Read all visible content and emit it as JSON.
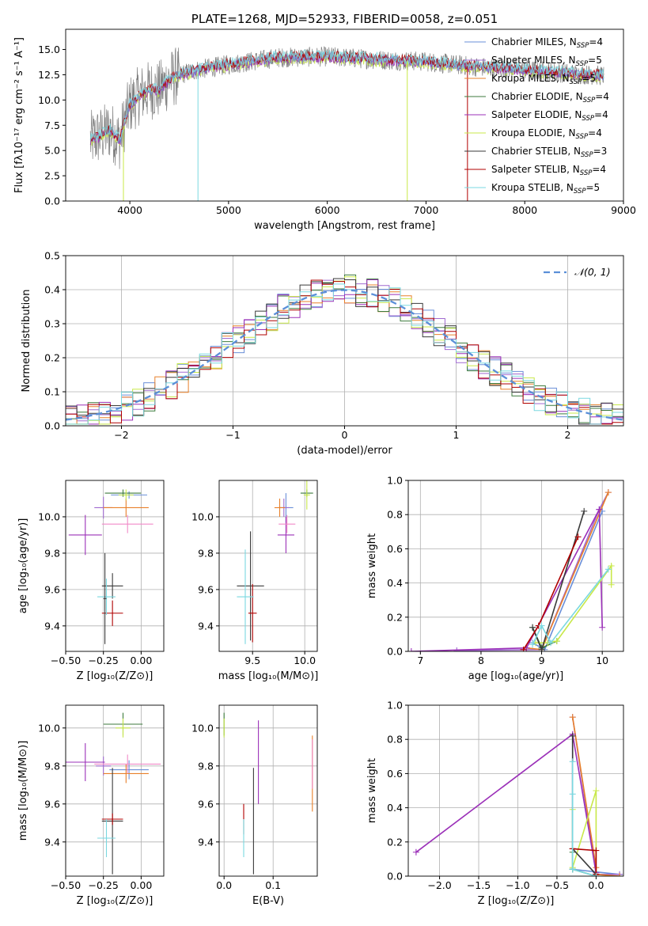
{
  "colors": {
    "Chabrier MILES": "#6a8fd8",
    "Salpeter MILES": "#a06ad0",
    "Kroupa MILES": "#e8802a",
    "Chabrier ELODIE": "#3c7a3c",
    "Salpeter ELODIE": "#9b30b8",
    "Kroupa ELODIE": "#c8e84a",
    "Chabrier STELIB": "#3a3a3a",
    "Salpeter STELIB": "#b00000",
    "Kroupa STELIB": "#7ad8e0",
    "gray_spectrum": "#808080",
    "gaussian": "#5b8fd8",
    "grid": "#b0b0b0"
  },
  "chart_data": [
    {
      "id": "spectrum",
      "type": "line",
      "title": "PLATE=1268, MJD=52933, FIBERID=0058, z=0.051",
      "xlabel": "wavelength [Angstrom, rest frame]",
      "ylabel": "Flux [fλ10⁻¹⁷ erg cm⁻² s⁻¹ A⁻¹]",
      "xlim": [
        3350,
        9000
      ],
      "ylim": [
        0,
        17
      ],
      "xticks": [
        4000,
        5000,
        6000,
        7000,
        8000,
        9000
      ],
      "yticks": [
        0.0,
        2.5,
        5.0,
        7.5,
        10.0,
        12.5,
        15.0
      ],
      "grid": false,
      "legend_position": "right",
      "legend": [
        {
          "label": "Chabrier MILES, N",
          "sub": "SSP",
          "tail": "=4"
        },
        {
          "label": "Salpeter MILES, N",
          "sub": "SSP",
          "tail": "=5"
        },
        {
          "label": "Kroupa MILES, N",
          "sub": "SSP",
          "tail": "=5"
        },
        {
          "label": "Chabrier ELODIE, N",
          "sub": "SSP",
          "tail": "=4"
        },
        {
          "label": "Salpeter ELODIE, N",
          "sub": "SSP",
          "tail": "=4"
        },
        {
          "label": "Kroupa ELODIE, N",
          "sub": "SSP",
          "tail": "=4"
        },
        {
          "label": "Chabrier STELIB, N",
          "sub": "SSP",
          "tail": "=3"
        },
        {
          "label": "Salpeter STELIB, N",
          "sub": "SSP",
          "tail": "=4"
        },
        {
          "label": "Kroupa STELIB, N",
          "sub": "SSP",
          "tail": "=5"
        }
      ],
      "model_continuum": {
        "x": [
          3600,
          3700,
          3800,
          3900,
          3950,
          4000,
          4100,
          4200,
          4300,
          4400,
          4500,
          4700,
          5000,
          5500,
          6000,
          6500,
          7000,
          7500,
          8000,
          8500,
          8800
        ],
        "y": [
          6.0,
          6.5,
          7.0,
          6.0,
          8.0,
          9.5,
          10.5,
          11.0,
          11.0,
          12.0,
          12.5,
          13.0,
          13.5,
          14.2,
          14.3,
          14.0,
          13.8,
          13.3,
          13.0,
          12.6,
          12.4
        ]
      },
      "observed_spectrum": {
        "range": [
          3600,
          8800
        ],
        "noise_amplitude_blue": 3.0,
        "noise_amplitude_red": 1.0
      }
    },
    {
      "id": "residuals",
      "type": "line",
      "xlabel": "(data-model)/error",
      "ylabel": "Normed distribution",
      "xlim": [
        -2.5,
        2.5
      ],
      "ylim": [
        0,
        0.5
      ],
      "xticks": [
        -2,
        -1,
        0,
        1,
        2
      ],
      "yticks": [
        0.0,
        0.1,
        0.2,
        0.3,
        0.4,
        0.5
      ],
      "grid": true,
      "legend_position": "top-right",
      "legend": [
        {
          "label": "𝒩(0, 1)"
        }
      ],
      "bin_width": 0.1,
      "bin_start": -2.5
    },
    {
      "id": "age_vs_Z",
      "type": "scatter",
      "xlabel": "Z [log₁₀(Z/Z⊙)]",
      "ylabel": "age  [log₁₀(age/yr)]",
      "xlim": [
        -0.5,
        0.15
      ],
      "ylim": [
        9.26,
        10.2
      ],
      "xticks": [
        -0.5,
        -0.25,
        0.0
      ],
      "yticks": [
        9.4,
        9.6,
        9.8,
        10.0
      ],
      "grid": true,
      "points": [
        {
          "model": "Chabrier MILES",
          "x": -0.08,
          "y": 10.12,
          "xerr": 0.12,
          "yerr": 0.02
        },
        {
          "model": "Salpeter MILES",
          "x": -0.25,
          "y": 10.05,
          "xerr": 0.06,
          "yerr": 0.06
        },
        {
          "model": "Kroupa MILES",
          "x": -0.1,
          "y": 10.05,
          "xerr": 0.15,
          "yerr": 0.05
        },
        {
          "model": "Chabrier ELODIE",
          "x": -0.12,
          "y": 10.13,
          "xerr": 0.12,
          "yerr": 0.02
        },
        {
          "model": "Salpeter ELODIE",
          "x": -0.37,
          "y": 9.9,
          "xerr": 0.11,
          "yerr": 0.11
        },
        {
          "model": "Kroupa ELODIE",
          "x": -0.1,
          "y": 10.12,
          "xerr": 0.05,
          "yerr": 0.03
        },
        {
          "model": "Chabrier STELIB",
          "x": -0.19,
          "y": 9.62,
          "xerr": 0.07,
          "yerr": 0.07
        },
        {
          "model": "Salpeter STELIB",
          "x": -0.19,
          "y": 9.47,
          "xerr": 0.07,
          "yerr": 0.07
        },
        {
          "model": "Kroupa STELIB",
          "x": -0.23,
          "y": 9.56,
          "xerr": 0.06,
          "yerr": 0.1
        },
        {
          "model": "pink",
          "color": "#f08ac8",
          "x": -0.09,
          "y": 9.96,
          "xerr": 0.17,
          "yerr": 0.05
        },
        {
          "model": "Chabrier STELIB",
          "x": -0.24,
          "y": 9.55,
          "xerr": 0.01,
          "yerr": 0.25
        }
      ]
    },
    {
      "id": "age_vs_mass",
      "type": "scatter",
      "xlabel": "mass [log₁₀(M/M⊙)]",
      "ylabel": "",
      "xlim": [
        9.18,
        10.12
      ],
      "ylim": [
        9.26,
        10.2
      ],
      "xticks": [
        9.5,
        10.0
      ],
      "yticks": [
        9.4,
        9.6,
        9.8,
        10.0
      ],
      "grid": true,
      "points": [
        {
          "model": "Chabrier MILES",
          "x": 9.82,
          "y": 10.05,
          "xerr": 0.07,
          "yerr": 0.08
        },
        {
          "model": "Salpeter MILES",
          "x": 9.8,
          "y": 10.05,
          "xerr": 0.05,
          "yerr": 0.05
        },
        {
          "model": "Kroupa MILES",
          "x": 9.76,
          "y": 10.05,
          "xerr": 0.05,
          "yerr": 0.05
        },
        {
          "model": "Chabrier ELODIE",
          "x": 10.02,
          "y": 10.13,
          "xerr": 0.06,
          "yerr": 0.02
        },
        {
          "model": "Salpeter ELODIE",
          "x": 9.82,
          "y": 9.9,
          "xerr": 0.08,
          "yerr": 0.1
        },
        {
          "model": "Kroupa ELODIE",
          "x": 10.02,
          "y": 10.12,
          "xerr": 0.03,
          "yerr": 0.08
        },
        {
          "model": "Chabrier STELIB",
          "x": 9.48,
          "y": 9.62,
          "xerr": 0.13,
          "yerr": 0.3
        },
        {
          "model": "Salpeter STELIB",
          "x": 9.5,
          "y": 9.47,
          "xerr": 0.04,
          "yerr": 0.16
        },
        {
          "model": "Kroupa STELIB",
          "x": 9.43,
          "y": 9.56,
          "xerr": 0.08,
          "yerr": 0.26
        },
        {
          "model": "pink",
          "color": "#f08ac8",
          "x": 9.83,
          "y": 9.96,
          "xerr": 0.08,
          "yerr": 0.05
        }
      ]
    },
    {
      "id": "weight_vs_age",
      "type": "line",
      "xlabel": "age  [log₁₀(age/yr)]",
      "ylabel": "mass weight",
      "xlim": [
        6.8,
        10.35
      ],
      "ylim": [
        0,
        1
      ],
      "xticks": [
        7,
        8,
        9,
        10
      ],
      "yticks": [
        0.0,
        0.2,
        0.4,
        0.6,
        0.8,
        1.0
      ],
      "grid": true,
      "series": [
        {
          "model": "Chabrier MILES",
          "x": [
            8.85,
            9.05,
            10.0
          ],
          "y": [
            0.05,
            0.01,
            0.82
          ]
        },
        {
          "model": "Salpeter MILES",
          "x": [
            7.6,
            9.0,
            9.95,
            10.1
          ],
          "y": [
            0.005,
            0.01,
            0.83,
            0.93
          ]
        },
        {
          "model": "Kroupa MILES",
          "x": [
            8.75,
            9.0,
            10.1
          ],
          "y": [
            0.02,
            0.01,
            0.93
          ]
        },
        {
          "model": "Chabrier ELODIE",
          "x": [
            8.85,
            9.0,
            9.25
          ],
          "y": [
            0.14,
            0.02,
            0.06
          ]
        },
        {
          "model": "Salpeter ELODIE",
          "x": [
            6.85,
            8.75,
            9.95,
            10.0
          ],
          "y": [
            0.0,
            0.02,
            0.83,
            0.14
          ]
        },
        {
          "model": "Kroupa ELODIE",
          "x": [
            8.9,
            9.1,
            9.25,
            10.15,
            10.15
          ],
          "y": [
            0.05,
            0.05,
            0.06,
            0.5,
            0.39
          ]
        },
        {
          "model": "Chabrier STELIB",
          "x": [
            8.85,
            9.0,
            9.7
          ],
          "y": [
            0.14,
            0.01,
            0.82
          ]
        },
        {
          "model": "Salpeter STELIB",
          "x": [
            8.7,
            8.95,
            9.6
          ],
          "y": [
            0.01,
            0.15,
            0.67
          ]
        },
        {
          "model": "Kroupa STELIB",
          "x": [
            8.85,
            9.0,
            9.15,
            10.1
          ],
          "y": [
            0.04,
            0.15,
            0.05,
            0.48
          ]
        }
      ]
    },
    {
      "id": "mass_vs_Z",
      "type": "scatter",
      "xlabel": "Z [log₁₀(Z/Z⊙)]",
      "ylabel": "mass [log₁₀(M/M⊙)]",
      "xlim": [
        -0.5,
        0.15
      ],
      "ylim": [
        9.22,
        10.12
      ],
      "xticks": [
        -0.5,
        -0.25,
        0.0
      ],
      "yticks": [
        9.4,
        9.6,
        9.8,
        10.0
      ],
      "grid": true,
      "points": [
        {
          "model": "Chabrier MILES",
          "x": -0.08,
          "y": 9.78,
          "xerr": 0.13,
          "yerr": 0.05
        },
        {
          "model": "Salpeter MILES",
          "x": -0.25,
          "y": 9.8,
          "xerr": 0.05,
          "yerr": 0.05
        },
        {
          "model": "Kroupa MILES",
          "x": -0.1,
          "y": 9.76,
          "xerr": 0.15,
          "yerr": 0.05
        },
        {
          "model": "Chabrier ELODIE",
          "x": -0.12,
          "y": 10.02,
          "xerr": 0.13,
          "yerr": 0.06
        },
        {
          "model": "Salpeter ELODIE",
          "x": -0.37,
          "y": 9.82,
          "xerr": 0.13,
          "yerr": 0.1
        },
        {
          "model": "Kroupa ELODIE",
          "x": -0.12,
          "y": 10.0,
          "xerr": 0.05,
          "yerr": 0.05
        },
        {
          "model": "Chabrier STELIB",
          "x": -0.19,
          "y": 9.51,
          "xerr": 0.07,
          "yerr": 0.28
        },
        {
          "model": "Salpeter STELIB",
          "x": -0.19,
          "y": 9.52,
          "xerr": 0.07,
          "yerr": 0.03
        },
        {
          "model": "Kroupa STELIB",
          "x": -0.23,
          "y": 9.42,
          "xerr": 0.06,
          "yerr": 0.1
        },
        {
          "model": "pink",
          "color": "#f08ac8",
          "x": -0.09,
          "y": 9.81,
          "xerr": 0.22,
          "yerr": 0.05
        }
      ]
    },
    {
      "id": "mass_vs_ebv",
      "type": "scatter",
      "xlabel": "E(B-V)",
      "ylabel": "",
      "xlim": [
        -0.01,
        0.19
      ],
      "ylim": [
        9.22,
        10.12
      ],
      "xticks": [
        0.0,
        0.1
      ],
      "yticks": [
        9.4,
        9.6,
        9.8,
        10.0
      ],
      "grid": true,
      "points": [
        {
          "model": "Chabrier ELODIE",
          "x": 0.0,
          "y": 10.02,
          "xerr": 0.0,
          "yerr": 0.06
        },
        {
          "model": "Kroupa ELODIE",
          "x": 0.0,
          "y": 10.0,
          "xerr": 0.0,
          "yerr": 0.05
        },
        {
          "model": "Salpeter ELODIE",
          "x": 0.07,
          "y": 9.82,
          "xerr": 0.0,
          "yerr": 0.22
        },
        {
          "model": "Kroupa MILES",
          "x": 0.18,
          "y": 9.76,
          "xerr": 0.0,
          "yerr": 0.2
        },
        {
          "model": "pink",
          "color": "#f08ac8",
          "x": 0.18,
          "y": 9.81,
          "xerr": 0.0,
          "yerr": 0.13
        },
        {
          "model": "Salpeter STELIB",
          "x": 0.04,
          "y": 9.52,
          "xerr": 0.0,
          "yerr": 0.08
        },
        {
          "model": "Chabrier STELIB",
          "x": 0.06,
          "y": 9.51,
          "xerr": 0.0,
          "yerr": 0.28
        },
        {
          "model": "Kroupa STELIB",
          "x": 0.04,
          "y": 9.42,
          "xerr": 0.0,
          "yerr": 0.1
        }
      ]
    },
    {
      "id": "weight_vs_Z",
      "type": "line",
      "xlabel": "Z [log₁₀(Z/Z⊙)]",
      "ylabel": "mass weight",
      "xlim": [
        -2.4,
        0.35
      ],
      "ylim": [
        0,
        1
      ],
      "xticks": [
        -2.0,
        -1.5,
        -1.0,
        -0.5,
        0.0
      ],
      "yticks": [
        0.0,
        0.2,
        0.4,
        0.6,
        0.8,
        1.0
      ],
      "grid": true,
      "series": [
        {
          "model": "Chabrier MILES",
          "x": [
            -0.3,
            -0.3,
            0.3
          ],
          "y": [
            0.82,
            0.04,
            0.01
          ]
        },
        {
          "model": "Salpeter MILES",
          "x": [
            -0.3,
            0.0,
            0.3
          ],
          "y": [
            0.93,
            0.01,
            0.01
          ]
        },
        {
          "model": "Kroupa MILES",
          "x": [
            -0.3,
            0.0,
            0.0,
            0.3
          ],
          "y": [
            0.93,
            0.05,
            0.01,
            0.0
          ]
        },
        {
          "model": "Chabrier ELODIE",
          "x": [
            -0.3,
            -0.3,
            0.0
          ],
          "y": [
            0.14,
            0.04,
            0.0
          ]
        },
        {
          "model": "Salpeter ELODIE",
          "x": [
            -2.3,
            -0.3,
            0.0,
            0.0
          ],
          "y": [
            0.14,
            0.83,
            0.02,
            0.0
          ]
        },
        {
          "model": "Kroupa ELODIE",
          "x": [
            -0.3,
            -0.3,
            0.0,
            0.0
          ],
          "y": [
            0.39,
            0.05,
            0.5,
            0.0
          ]
        },
        {
          "model": "Chabrier STELIB",
          "x": [
            -0.3,
            -0.3,
            0.0
          ],
          "y": [
            0.82,
            0.16,
            0.01
          ]
        },
        {
          "model": "Salpeter STELIB",
          "x": [
            -0.3,
            0.0,
            0.0
          ],
          "y": [
            0.16,
            0.15,
            0.01
          ]
        },
        {
          "model": "Kroupa STELIB",
          "x": [
            -0.3,
            -0.3,
            -0.3,
            0.0
          ],
          "y": [
            0.67,
            0.48,
            0.04,
            0.0
          ]
        }
      ]
    }
  ]
}
